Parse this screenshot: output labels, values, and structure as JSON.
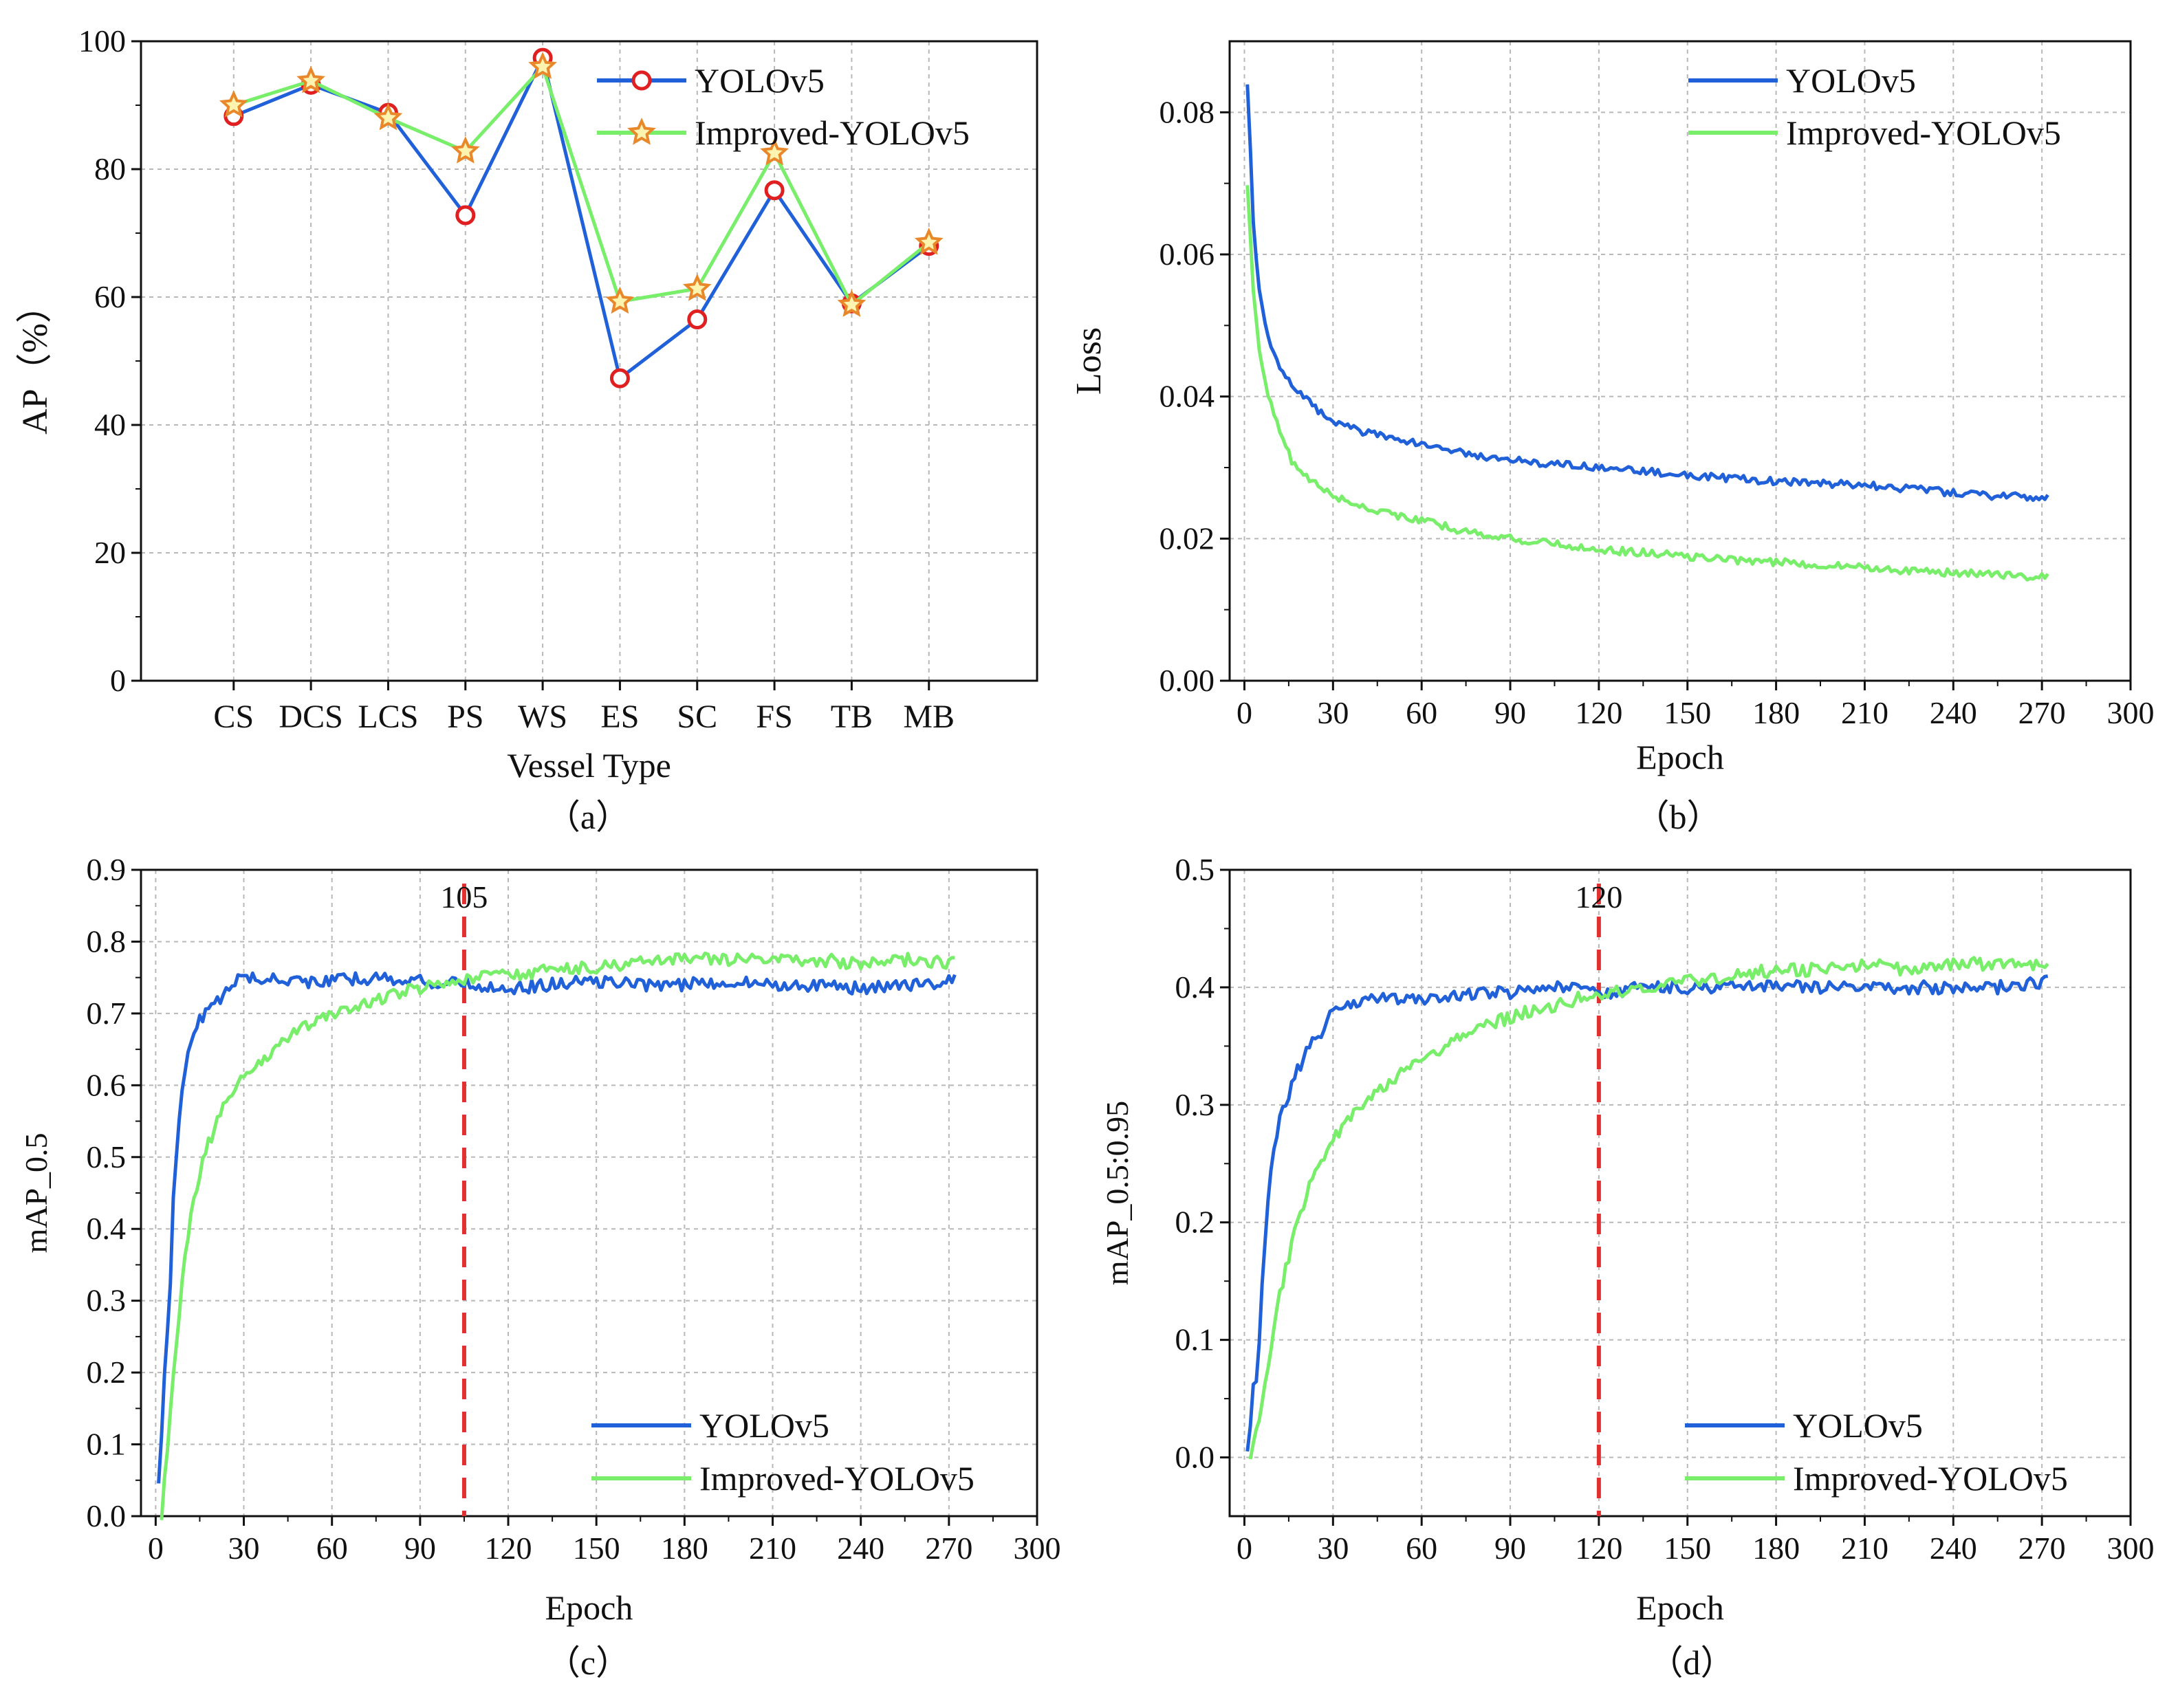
{
  "figure": {
    "colors": {
      "yolo": "#2060d8",
      "improved": "#78ee6a",
      "marker_circle": "#e02020",
      "marker_star": "#e8882a",
      "ref_line": "#e03030",
      "grid": "#b8b8b8",
      "axis": "#111111"
    }
  },
  "chart_data": [
    {
      "id": "a",
      "type": "line",
      "caption": "（a）",
      "xlabel": "Vessel Type",
      "ylabel": "AP（%）",
      "categories": [
        "CS",
        "DCS",
        "LCS",
        "PS",
        "WS",
        "ES",
        "SC",
        "FS",
        "TB",
        "MB"
      ],
      "ylim": [
        0,
        100
      ],
      "yticks": [
        0,
        20,
        40,
        60,
        80,
        100
      ],
      "ytick_labels": [
        "0",
        "20",
        "40",
        "60",
        "80",
        "100"
      ],
      "grid": true,
      "legend": "top-right",
      "series": [
        {
          "name": "YOLOv5",
          "values": [
            88.3,
            93.2,
            88.8,
            72.8,
            97.4,
            47.3,
            56.5,
            76.7,
            59.0,
            68.0
          ]
        },
        {
          "name": "Improved-YOLOv5",
          "values": [
            90.0,
            93.8,
            88.0,
            82.8,
            96.0,
            59.3,
            61.3,
            82.5,
            58.8,
            68.5
          ]
        }
      ]
    },
    {
      "id": "b",
      "type": "line",
      "caption": "（b）",
      "xlabel": "Epoch",
      "ylabel": "Loss",
      "xlim": [
        -5,
        300
      ],
      "ylim": [
        0,
        0.09
      ],
      "xticks": [
        0,
        30,
        60,
        90,
        120,
        150,
        180,
        210,
        240,
        270,
        300
      ],
      "xtick_labels": [
        "0",
        "30",
        "60",
        "90",
        "120",
        "150",
        "180",
        "210",
        "240",
        "270",
        "300"
      ],
      "yticks": [
        0,
        0.02,
        0.04,
        0.06,
        0.08
      ],
      "ytick_labels": [
        "0.00",
        "0.02",
        "0.04",
        "0.06",
        "0.08"
      ],
      "grid": true,
      "legend": "top-right",
      "series": [
        {
          "name": "YOLOv5",
          "x": [
            1,
            2,
            3,
            5,
            8,
            12,
            16,
            20,
            25,
            30,
            40,
            50,
            60,
            75,
            90,
            105,
            120,
            135,
            150,
            165,
            180,
            195,
            210,
            225,
            240,
            255,
            272
          ],
          "values": [
            0.084,
            0.075,
            0.064,
            0.055,
            0.048,
            0.044,
            0.042,
            0.04,
            0.038,
            0.0365,
            0.035,
            0.034,
            0.0335,
            0.032,
            0.031,
            0.0305,
            0.03,
            0.0295,
            0.029,
            0.0285,
            0.028,
            0.0278,
            0.0275,
            0.027,
            0.0265,
            0.026,
            0.0258
          ]
        },
        {
          "name": "Improved-YOLOv5",
          "x": [
            1,
            2,
            3,
            5,
            8,
            12,
            16,
            20,
            25,
            30,
            40,
            50,
            60,
            75,
            90,
            105,
            120,
            135,
            150,
            165,
            180,
            195,
            210,
            225,
            240,
            255,
            272
          ],
          "values": [
            0.07,
            0.063,
            0.055,
            0.047,
            0.04,
            0.035,
            0.031,
            0.029,
            0.0275,
            0.026,
            0.0245,
            0.0235,
            0.0225,
            0.021,
            0.02,
            0.0192,
            0.0185,
            0.018,
            0.0175,
            0.017,
            0.0167,
            0.0163,
            0.016,
            0.0155,
            0.0152,
            0.015,
            0.0145
          ]
        }
      ]
    },
    {
      "id": "c",
      "type": "line",
      "caption": "（c）",
      "xlabel": "Epoch",
      "ylabel": "mAP_0.5",
      "xlim": [
        -5,
        300
      ],
      "ylim": [
        0,
        0.9
      ],
      "xticks": [
        0,
        30,
        60,
        90,
        120,
        150,
        180,
        210,
        240,
        270,
        300
      ],
      "xtick_labels": [
        "0",
        "30",
        "60",
        "90",
        "120",
        "150",
        "180",
        "210",
        "240",
        "270",
        "300"
      ],
      "yticks": [
        0,
        0.1,
        0.2,
        0.3,
        0.4,
        0.5,
        0.6,
        0.7,
        0.8,
        0.9
      ],
      "ytick_labels": [
        "0.0",
        "0.1",
        "0.2",
        "0.3",
        "0.4",
        "0.5",
        "0.6",
        "0.7",
        "0.8",
        "0.9"
      ],
      "grid": true,
      "legend": "bottom-right",
      "ref_line": {
        "x": 105,
        "label": "105"
      },
      "series": [
        {
          "name": "YOLOv5",
          "x": [
            1,
            2,
            3,
            4,
            5,
            6,
            8,
            10,
            12,
            15,
            18,
            22,
            26,
            30,
            35,
            40,
            50,
            60,
            75,
            90,
            105,
            120,
            135,
            150,
            165,
            180,
            195,
            210,
            225,
            240,
            255,
            272
          ],
          "values": [
            0.05,
            0.12,
            0.2,
            0.26,
            0.33,
            0.45,
            0.55,
            0.62,
            0.66,
            0.69,
            0.71,
            0.72,
            0.74,
            0.755,
            0.745,
            0.75,
            0.745,
            0.745,
            0.75,
            0.745,
            0.74,
            0.735,
            0.74,
            0.745,
            0.74,
            0.74,
            0.745,
            0.74,
            0.74,
            0.735,
            0.74,
            0.745
          ]
        },
        {
          "name": "Improved-YOLOv5",
          "x": [
            2,
            3,
            4,
            5,
            6,
            8,
            10,
            12,
            15,
            18,
            22,
            26,
            30,
            35,
            40,
            50,
            60,
            75,
            90,
            105,
            120,
            135,
            150,
            165,
            180,
            195,
            210,
            225,
            240,
            255,
            272
          ],
          "values": [
            0.0,
            0.05,
            0.1,
            0.15,
            0.2,
            0.28,
            0.36,
            0.42,
            0.48,
            0.52,
            0.56,
            0.59,
            0.61,
            0.63,
            0.65,
            0.68,
            0.7,
            0.72,
            0.735,
            0.745,
            0.755,
            0.76,
            0.765,
            0.77,
            0.775,
            0.775,
            0.775,
            0.775,
            0.77,
            0.775,
            0.77
          ]
        }
      ]
    },
    {
      "id": "d",
      "type": "line",
      "caption": "（d）",
      "xlabel": "Epoch",
      "ylabel": "mAP_0.5:0.95",
      "xlim": [
        -5,
        300
      ],
      "ylim": [
        -0.05,
        0.5
      ],
      "xticks": [
        0,
        30,
        60,
        90,
        120,
        150,
        180,
        210,
        240,
        270,
        300
      ],
      "xtick_labels": [
        "0",
        "30",
        "60",
        "90",
        "120",
        "150",
        "180",
        "210",
        "240",
        "270",
        "300"
      ],
      "yticks": [
        0,
        0.1,
        0.2,
        0.3,
        0.4,
        0.5
      ],
      "ytick_labels": [
        "0.0",
        "0.1",
        "0.2",
        "0.3",
        "0.4",
        "0.5"
      ],
      "grid": true,
      "legend": "bottom-right",
      "ref_line": {
        "x": 120,
        "label": "120"
      },
      "series": [
        {
          "name": "YOLOv5",
          "x": [
            1,
            2,
            3,
            4,
            5,
            6,
            8,
            10,
            12,
            15,
            18,
            22,
            26,
            30,
            35,
            40,
            50,
            60,
            75,
            90,
            105,
            120,
            135,
            150,
            165,
            180,
            195,
            210,
            225,
            240,
            255,
            272
          ],
          "values": [
            0.01,
            0.03,
            0.06,
            0.07,
            0.1,
            0.15,
            0.22,
            0.26,
            0.29,
            0.31,
            0.33,
            0.35,
            0.36,
            0.38,
            0.385,
            0.39,
            0.39,
            0.39,
            0.395,
            0.395,
            0.4,
            0.395,
            0.4,
            0.4,
            0.4,
            0.4,
            0.4,
            0.4,
            0.4,
            0.4,
            0.4,
            0.405
          ]
        },
        {
          "name": "Improved-YOLOv5",
          "x": [
            2,
            3,
            4,
            5,
            6,
            8,
            10,
            12,
            15,
            18,
            22,
            26,
            30,
            35,
            40,
            50,
            60,
            75,
            90,
            105,
            120,
            135,
            150,
            165,
            180,
            195,
            210,
            225,
            240,
            255,
            272
          ],
          "values": [
            0.0,
            0.01,
            0.02,
            0.03,
            0.05,
            0.08,
            0.11,
            0.14,
            0.17,
            0.2,
            0.23,
            0.25,
            0.27,
            0.29,
            0.3,
            0.32,
            0.34,
            0.36,
            0.375,
            0.385,
            0.395,
            0.4,
            0.405,
            0.41,
            0.415,
            0.415,
            0.42,
            0.415,
            0.42,
            0.42,
            0.418
          ]
        }
      ]
    }
  ]
}
